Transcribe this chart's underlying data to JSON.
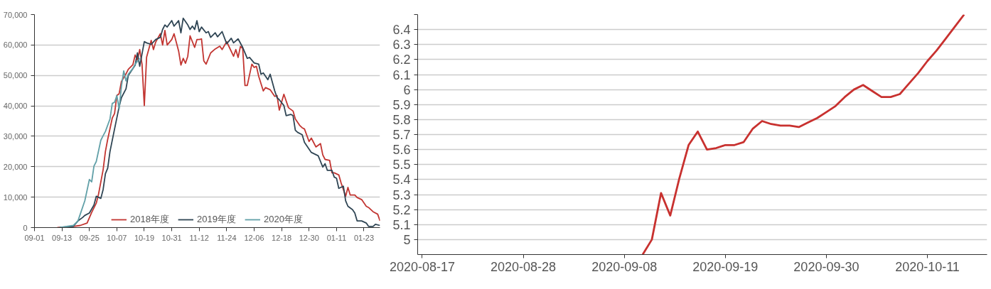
{
  "chart_data": [
    {
      "type": "line",
      "grid": "y",
      "legend": "bottom",
      "xlim": [
        "2019-09-01",
        "2020-01-30"
      ],
      "xticks": [
        {
          "value": "2019-09-01",
          "label": "09-01"
        },
        {
          "value": "2019-09-13",
          "label": "09-13"
        },
        {
          "value": "2019-09-25",
          "label": "09-25"
        },
        {
          "value": "2019-10-07",
          "label": "10-07"
        },
        {
          "value": "2019-10-19",
          "label": "10-19"
        },
        {
          "value": "2019-10-31",
          "label": "10-31"
        },
        {
          "value": "2019-11-12",
          "label": "11-12"
        },
        {
          "value": "2019-11-24",
          "label": "11-24"
        },
        {
          "value": "2019-12-06",
          "label": "12-06"
        },
        {
          "value": "2019-12-18",
          "label": "12-18"
        },
        {
          "value": "2019-12-30",
          "label": "12-30"
        },
        {
          "value": "2020-01-11",
          "label": "01-11"
        },
        {
          "value": "2020-01-23",
          "label": "01-23"
        }
      ],
      "ylim": [
        0,
        70000
      ],
      "yticks": [
        0,
        {
          "value": 10000,
          "label": "10,000"
        },
        {
          "value": 20000,
          "label": "20,000"
        },
        {
          "value": 30000,
          "label": "30,000"
        },
        {
          "value": 40000,
          "label": "40,000"
        },
        {
          "value": 50000,
          "label": "50,000"
        },
        {
          "value": 60000,
          "label": "60,000"
        },
        {
          "value": 70000,
          "label": "70,000"
        }
      ],
      "series": [
        {
          "name": "2018年度",
          "color": "#c23531",
          "x": [
            "2019-09-11",
            "2019-09-18",
            "2019-09-21",
            "2019-09-24",
            "2019-09-26",
            "2019-09-28",
            "2019-09-29",
            "2019-10-01",
            "2019-10-02",
            "2019-10-03",
            "2019-10-05",
            "2019-10-06",
            "2019-10-07",
            "2019-10-08",
            "2019-10-09",
            "2019-10-11",
            "2019-10-12",
            "2019-10-14",
            "2019-10-15",
            "2019-10-16",
            "2019-10-17",
            "2019-10-18",
            "2019-10-19",
            "2019-10-20",
            "2019-10-22",
            "2019-10-23",
            "2019-10-24",
            "2019-10-26",
            "2019-10-27",
            "2019-10-28",
            "2019-10-29",
            "2019-10-31",
            "2019-11-01",
            "2019-11-03",
            "2019-11-04",
            "2019-11-05",
            "2019-11-06",
            "2019-11-07",
            "2019-11-08",
            "2019-11-10",
            "2019-11-11",
            "2019-11-12",
            "2019-11-13",
            "2019-11-14",
            "2019-11-15",
            "2019-11-17",
            "2019-11-19",
            "2019-11-21",
            "2019-11-22",
            "2019-11-24",
            "2019-11-25",
            "2019-11-27",
            "2019-11-28",
            "2019-11-29",
            "2019-11-30",
            "2019-12-01",
            "2019-12-02",
            "2019-12-03",
            "2019-12-05",
            "2019-12-06",
            "2019-12-07",
            "2019-12-08",
            "2019-12-10",
            "2019-12-11",
            "2019-12-13",
            "2019-12-14",
            "2019-12-15",
            "2019-12-16",
            "2019-12-17",
            "2019-12-19",
            "2019-12-20",
            "2019-12-21",
            "2019-12-23",
            "2019-12-24",
            "2019-12-26",
            "2019-12-27",
            "2019-12-28",
            "2019-12-30",
            "2019-12-31",
            "2020-01-02",
            "2020-01-04",
            "2020-01-05",
            "2020-01-06",
            "2020-01-08",
            "2020-01-09",
            "2020-01-10",
            "2020-01-12",
            "2020-01-13",
            "2020-01-15",
            "2020-01-16",
            "2020-01-17",
            "2020-01-19",
            "2020-01-20",
            "2020-01-22",
            "2020-01-24",
            "2020-01-25",
            "2020-01-27",
            "2020-01-29",
            "2020-01-30"
          ],
          "values": [
            0,
            400,
            700,
            1500,
            5000,
            8000,
            11000,
            19000,
            25000,
            29000,
            36000,
            37500,
            43400,
            44000,
            48000,
            50500,
            52000,
            53500,
            56700,
            55000,
            58500,
            53700,
            40100,
            56000,
            61500,
            58500,
            61000,
            63700,
            60000,
            64800,
            60000,
            61800,
            63700,
            58000,
            53400,
            55600,
            54000,
            56300,
            63000,
            59200,
            61800,
            61800,
            62000,
            54800,
            53700,
            57400,
            58700,
            59600,
            58500,
            61100,
            59500,
            56300,
            58500,
            55900,
            59500,
            58900,
            46700,
            46700,
            53700,
            52600,
            53000,
            49700,
            44900,
            46000,
            45300,
            44200,
            43100,
            43400,
            38600,
            43800,
            41600,
            39400,
            38300,
            35700,
            33500,
            32800,
            32400,
            28300,
            29400,
            26500,
            27600,
            23900,
            22400,
            22100,
            18000,
            18000,
            17300,
            14700,
            10300,
            13200,
            10700,
            10700,
            9900,
            9200,
            7000,
            6600,
            5200,
            4400,
            2200
          ]
        },
        {
          "name": "2019年度",
          "color": "#2f4554",
          "x": [
            "2019-09-12",
            "2019-09-18",
            "2019-09-20",
            "2019-09-22",
            "2019-09-23",
            "2019-09-25",
            "2019-09-27",
            "2019-09-28",
            "2019-09-30",
            "2019-10-01",
            "2019-10-02",
            "2019-10-03",
            "2019-10-04",
            "2019-10-06",
            "2019-10-08",
            "2019-10-09",
            "2019-10-11",
            "2019-10-12",
            "2019-10-13",
            "2019-10-15",
            "2019-10-16",
            "2019-10-17",
            "2019-10-19",
            "2019-10-20",
            "2019-10-22",
            "2019-10-24",
            "2019-10-26",
            "2019-10-27",
            "2019-10-28",
            "2019-10-29",
            "2019-10-31",
            "2019-11-01",
            "2019-11-03",
            "2019-11-04",
            "2019-11-05",
            "2019-11-07",
            "2019-11-08",
            "2019-11-09",
            "2019-11-10",
            "2019-11-11",
            "2019-11-12",
            "2019-11-13",
            "2019-11-15",
            "2019-11-16",
            "2019-11-17",
            "2019-11-19",
            "2019-11-20",
            "2019-11-22",
            "2019-11-24",
            "2019-11-26",
            "2019-11-27",
            "2019-11-29",
            "2019-12-01",
            "2019-12-03",
            "2019-12-04",
            "2019-12-06",
            "2019-12-08",
            "2019-12-09",
            "2019-12-10",
            "2019-12-12",
            "2019-12-13",
            "2019-12-15",
            "2019-12-16",
            "2019-12-17",
            "2019-12-19",
            "2019-12-20",
            "2019-12-22",
            "2019-12-23",
            "2019-12-24",
            "2019-12-25",
            "2019-12-27",
            "2019-12-28",
            "2019-12-30",
            "2019-12-31",
            "2020-01-03",
            "2020-01-05",
            "2020-01-06",
            "2020-01-07",
            "2020-01-09",
            "2020-01-10",
            "2020-01-11",
            "2020-01-12",
            "2020-01-14",
            "2020-01-15",
            "2020-01-16",
            "2020-01-18",
            "2020-01-19",
            "2020-01-20",
            "2020-01-22",
            "2020-01-24",
            "2020-01-25",
            "2020-01-27",
            "2020-01-28",
            "2020-01-30"
          ],
          "values": [
            0,
            400,
            2200,
            3300,
            4000,
            4800,
            7400,
            10300,
            9600,
            12500,
            17700,
            19500,
            25000,
            32400,
            39700,
            42700,
            45600,
            50000,
            51100,
            53400,
            57400,
            53000,
            61100,
            60700,
            60200,
            61800,
            62500,
            65100,
            66600,
            65900,
            68000,
            66200,
            68000,
            64000,
            68800,
            66600,
            65100,
            66200,
            65100,
            68000,
            64400,
            65900,
            64000,
            64400,
            62500,
            64000,
            62700,
            64400,
            60400,
            62200,
            60700,
            62000,
            59200,
            55600,
            55900,
            54100,
            53700,
            50400,
            50800,
            48600,
            50400,
            44900,
            42700,
            42000,
            40100,
            36800,
            37200,
            36800,
            32000,
            31300,
            30500,
            28000,
            25800,
            24700,
            23600,
            19900,
            21000,
            18800,
            18800,
            16600,
            16200,
            12900,
            13600,
            8800,
            7000,
            5900,
            4800,
            2200,
            2200,
            1500,
            400,
            400,
            1100,
            700
          ]
        },
        {
          "name": "2020年度",
          "color": "#61a0a8",
          "x": [
            "2019-09-12",
            "2019-09-18",
            "2019-09-20",
            "2019-09-21",
            "2019-09-23",
            "2019-09-25",
            "2019-09-26",
            "2019-09-27",
            "2019-09-28",
            "2019-09-30",
            "2019-10-01",
            "2019-10-02",
            "2019-10-04",
            "2019-10-05",
            "2019-10-06",
            "2019-10-07",
            "2019-10-08",
            "2019-10-09",
            "2019-10-10",
            "2019-10-11",
            "2019-10-12",
            "2019-10-14",
            "2019-10-15",
            "2019-10-17"
          ],
          "values": [
            0,
            700,
            2200,
            4400,
            8800,
            15800,
            15000,
            20200,
            21700,
            28700,
            30200,
            31600,
            35700,
            40800,
            41200,
            43400,
            39000,
            46400,
            51500,
            48200,
            50400,
            52300,
            53700,
            55600
          ]
        }
      ]
    },
    {
      "type": "line",
      "grid": "y",
      "xlim": [
        "2020-08-16T12:00",
        "2020-10-17T12:00"
      ],
      "xticks": [
        "2020-08-17",
        "2020-08-28",
        "2020-09-08",
        "2020-09-19",
        "2020-09-30",
        "2020-10-11"
      ],
      "ylim": [
        4.9,
        6.5
      ],
      "yticks": [
        5,
        5.1,
        5.2,
        5.3,
        5.4,
        5.5,
        5.6,
        5.7,
        5.8,
        5.9,
        6,
        6.1,
        6.2,
        6.3,
        6.4,
        {
          "value": 6.5,
          "label": null
        }
      ],
      "series": [
        {
          "color": "#c8312f",
          "x": [
            "2020-09-10",
            "2020-09-11",
            "2020-09-12",
            "2020-09-13",
            "2020-09-14",
            "2020-09-15",
            "2020-09-16",
            "2020-09-17",
            "2020-09-18",
            "2020-09-19",
            "2020-09-20",
            "2020-09-21",
            "2020-09-22",
            "2020-09-23",
            "2020-09-24",
            "2020-09-25",
            "2020-09-26",
            "2020-09-27",
            "2020-09-28",
            "2020-09-29",
            "2020-09-30",
            "2020-10-01",
            "2020-10-02",
            "2020-10-03",
            "2020-10-04",
            "2020-10-05",
            "2020-10-06",
            "2020-10-07",
            "2020-10-08",
            "2020-10-09",
            "2020-10-10",
            "2020-10-11",
            "2020-10-12",
            "2020-10-13",
            "2020-10-14",
            "2020-10-15"
          ],
          "values": [
            4.9,
            5.0,
            5.31,
            5.16,
            5.41,
            5.63,
            5.72,
            5.6,
            5.61,
            5.63,
            5.63,
            5.65,
            5.74,
            5.79,
            5.77,
            5.76,
            5.76,
            5.75,
            5.78,
            5.81,
            5.85,
            5.89,
            5.95,
            6.0,
            6.03,
            5.99,
            5.95,
            5.95,
            5.97,
            6.04,
            6.11,
            6.19,
            6.26,
            6.34,
            6.42,
            6.5
          ]
        }
      ]
    }
  ]
}
